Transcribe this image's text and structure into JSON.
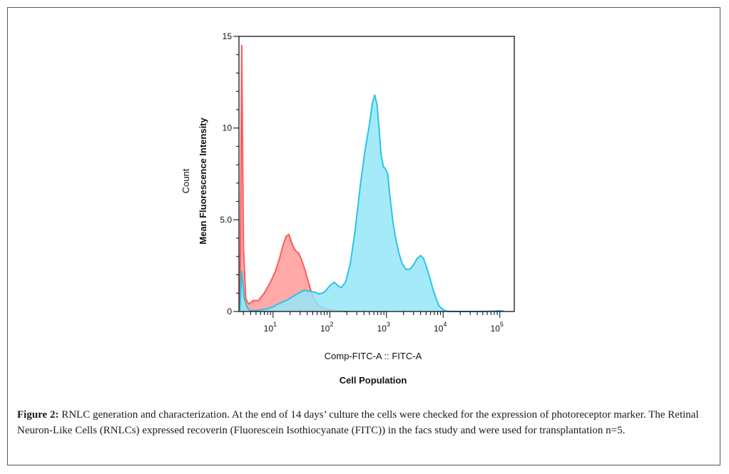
{
  "figure": {
    "label": "Figure 2:",
    "caption": "RNLC generation and characterization. At the end of 14 days’ culture the cells were checked for the expression of photoreceptor marker. The Retinal Neuron-Like Cells (RNLCs) expressed recoverin (Fluorescein Isothiocyanate (FITC)) in the facs study and were used for transplantation n=5."
  },
  "chart_data": {
    "type": "area",
    "xscale": "log",
    "xlim": [
      2.5,
      180000
    ],
    "ylim": [
      0,
      15
    ],
    "xlabel": "Comp-FITC-A :: FITC-A",
    "xlabel2": "Cell Population",
    "ylabel": "Mean Fluorescence Intensity",
    "ylabel2": "Count",
    "yticks": [
      {
        "value": 0,
        "label": "0"
      },
      {
        "value": 5,
        "label": "5.0"
      },
      {
        "value": 10,
        "label": "10"
      },
      {
        "value": 15,
        "label": "15"
      }
    ],
    "xticks": [
      {
        "value": 10,
        "base": "10",
        "exp": "1"
      },
      {
        "value": 100,
        "base": "10",
        "exp": "2"
      },
      {
        "value": 1000,
        "base": "10",
        "exp": "3"
      },
      {
        "value": 10000,
        "base": "10",
        "exp": "4"
      },
      {
        "value": 100000,
        "base": "10",
        "exp": "5"
      }
    ],
    "grid": false,
    "series": [
      {
        "color": "#ff5a5a",
        "fill": "#ff9a9a",
        "x": [
          2.6,
          2.8,
          3.0,
          3.3,
          3.7,
          4.5,
          5.5,
          7,
          9,
          11,
          13,
          15,
          17,
          19,
          21,
          23,
          25,
          28,
          32,
          37,
          42,
          48,
          55,
          62,
          70,
          80,
          95,
          115,
          140,
          170,
          200
        ],
        "y": [
          0.1,
          14.5,
          3.5,
          0.7,
          0.4,
          0.6,
          0.6,
          1.0,
          1.6,
          2.2,
          2.9,
          3.6,
          4.1,
          4.2,
          3.8,
          3.5,
          3.3,
          3.2,
          2.8,
          2.2,
          1.6,
          1.0,
          0.6,
          0.35,
          0.25,
          0.18,
          0.12,
          0.08,
          0.05,
          0.02,
          0.0
        ]
      },
      {
        "color": "#29c4e8",
        "fill": "#95e6f8",
        "x": [
          2.6,
          2.8,
          3.1,
          3.5,
          4,
          5,
          6.5,
          8,
          10,
          13,
          17,
          22,
          28,
          35,
          45,
          55,
          65,
          80,
          100,
          120,
          140,
          160,
          190,
          230,
          280,
          350,
          420,
          500,
          560,
          620,
          680,
          740,
          800,
          880,
          950,
          1050,
          1150,
          1300,
          1450,
          1650,
          1900,
          2200,
          2600,
          3000,
          3500,
          4000,
          4500,
          5000,
          5600,
          6500,
          7500,
          8500,
          10000,
          11500,
          13000,
          16000,
          20000,
          30000,
          50000,
          80000,
          100000,
          120000
        ],
        "y": [
          0.05,
          2.2,
          0.7,
          0.2,
          0.05,
          0.05,
          0.1,
          0.15,
          0.25,
          0.45,
          0.6,
          0.8,
          1.0,
          1.15,
          1.1,
          1.05,
          0.95,
          1.05,
          1.4,
          1.6,
          1.4,
          1.3,
          1.6,
          2.6,
          4.4,
          7.0,
          8.8,
          10.2,
          11.3,
          11.8,
          11.3,
          10.0,
          8.6,
          7.9,
          7.8,
          7.5,
          6.3,
          4.9,
          4.0,
          3.2,
          2.6,
          2.3,
          2.3,
          2.55,
          2.9,
          3.05,
          2.9,
          2.5,
          2.0,
          1.3,
          0.7,
          0.3,
          0.1,
          0.02,
          0.0,
          0.0,
          0.0,
          0.0,
          0.0,
          0.02,
          0.05,
          0.0
        ]
      }
    ]
  }
}
